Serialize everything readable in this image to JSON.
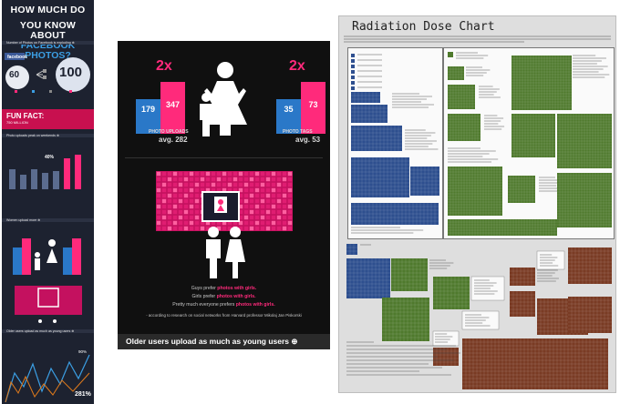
{
  "left_infographic": {
    "title_line1": "HOW MUCH DO",
    "title_line2": "YOU KNOW ABOUT",
    "title_line3": "FACEBOOK PHOTOS?",
    "section_number_of_photos": "Number of Photos on Facebook is exploding ⊕",
    "stat_60": "60",
    "stat_100": "100",
    "fun_fact": "FUN FACT:",
    "fun_fact_value": "750 MILLION",
    "section_weekends": "Photo uploads peak on weekends ⊕",
    "weekend_percent": "40%",
    "section_women": "Women upload more ⊕",
    "section_older": "Older users upload as much as young users ⊕",
    "older_percent_1": "90%",
    "older_percent_2": "281%"
  },
  "middle_panel": {
    "uploads_multiplier": "2x",
    "tags_multiplier": "2x",
    "men_uploads": "179",
    "women_uploads": "347",
    "men_tags": "35",
    "women_tags": "73",
    "photo_uploads_label": "PHOTO UPLOADS",
    "photo_tags_label": "PHOTO TAGS",
    "avg_uploads": "avg. 282",
    "avg_tags": "avg. 53",
    "footer_line1_pre": "Guys prefer ",
    "footer_line1_em": "photos with girls.",
    "footer_line2_pre": "Girls prefer ",
    "footer_line2_em": "photos with girls.",
    "footer_line3_pre": "Pretty much everyone prefers ",
    "footer_line3_em": "photos with girls.",
    "footer_source": "- according to research on social networks from Harvard professor Mikolaj Jan Piskorski",
    "bottom_banner": "Older users upload as much as young users ⊕"
  },
  "right_chart": {
    "title": "Radiation Dose Chart"
  },
  "colors": {
    "accent_pink": "#ff2a7b",
    "bar_blue": "#2a78c8",
    "dark_bg": "#101010",
    "strip_bg": "#1d2230",
    "chart_green": "#4f7a2d",
    "chart_blue": "#2e4f8f",
    "chart_brown": "#7a3b24"
  }
}
